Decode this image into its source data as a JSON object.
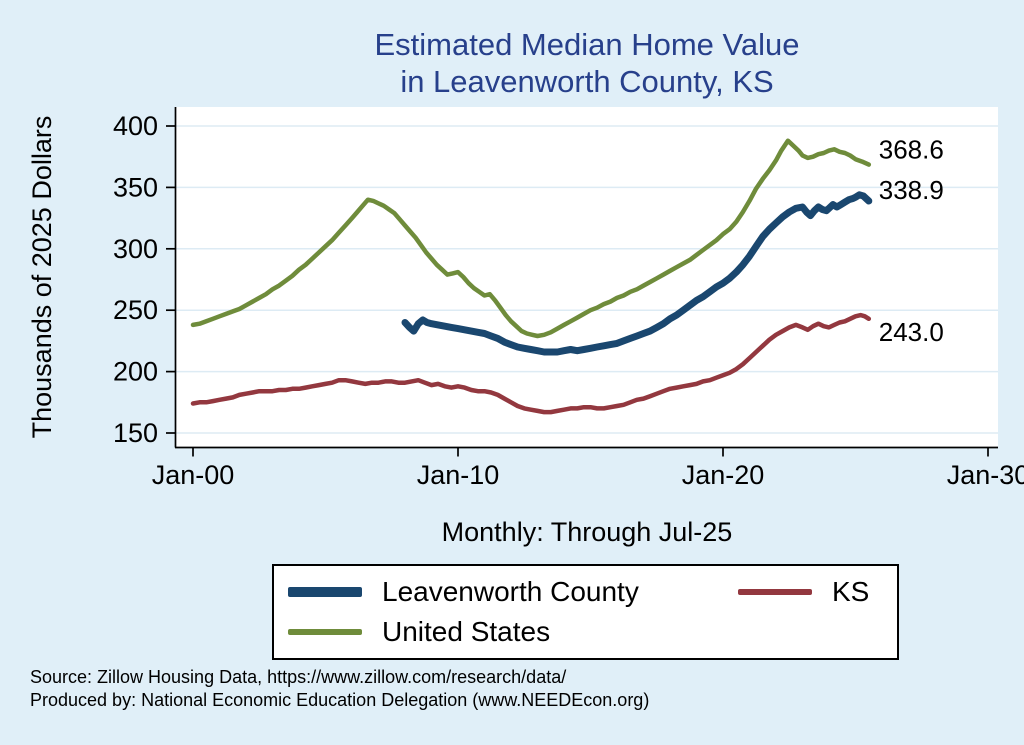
{
  "title": {
    "line1": "Estimated Median Home Value",
    "line2": "in Leavenworth County, KS"
  },
  "y_axis": {
    "label": "Thousands of 2025 Dollars"
  },
  "x_axis": {
    "subtitle": "Monthly: Through Jul-25"
  },
  "footer": {
    "line1": "Source: Zillow Housing Data, https://www.zillow.com/research/data/",
    "line2": "Produced by: National Economic Education Delegation (www.NEEDEcon.org)"
  },
  "chart_data": {
    "type": "line",
    "title": "Estimated Median Home Value in Leavenworth County, KS",
    "xlabel": "Monthly: Through Jul-25",
    "ylabel": "Thousands of 2025 Dollars",
    "x_unit": "decimal_year",
    "xlim_years": [
      2000,
      2030
    ],
    "ylim": [
      150,
      400
    ],
    "grid": true,
    "legend_position": "bottom",
    "x_ticks": [
      {
        "label": "Jan-00",
        "year": 2000
      },
      {
        "label": "Jan-10",
        "year": 2010
      },
      {
        "label": "Jan-20",
        "year": 2020
      },
      {
        "label": "Jan-30",
        "year": 2030
      }
    ],
    "y_ticks": [
      150,
      200,
      250,
      300,
      350,
      400
    ],
    "series": [
      {
        "id": "leavenworth",
        "name": "Leavenworth County",
        "color": "#1a476f",
        "width": 7,
        "end_label": "338.9",
        "points": [
          [
            2008,
            240
          ],
          [
            2008.17,
            236
          ],
          [
            2008.33,
            233
          ],
          [
            2008.5,
            239
          ],
          [
            2008.67,
            242
          ],
          [
            2008.83,
            240
          ],
          [
            2009,
            239
          ],
          [
            2009.25,
            238
          ],
          [
            2009.5,
            237
          ],
          [
            2009.75,
            236
          ],
          [
            2010,
            235
          ],
          [
            2010.25,
            234
          ],
          [
            2010.5,
            233
          ],
          [
            2010.75,
            232
          ],
          [
            2011,
            231
          ],
          [
            2011.25,
            229
          ],
          [
            2011.5,
            227
          ],
          [
            2011.75,
            224
          ],
          [
            2012,
            222
          ],
          [
            2012.25,
            220
          ],
          [
            2012.5,
            219
          ],
          [
            2012.75,
            218
          ],
          [
            2013,
            217
          ],
          [
            2013.25,
            216
          ],
          [
            2013.5,
            216
          ],
          [
            2013.75,
            216
          ],
          [
            2014,
            217
          ],
          [
            2014.25,
            218
          ],
          [
            2014.5,
            217
          ],
          [
            2014.75,
            218
          ],
          [
            2015,
            219
          ],
          [
            2015.25,
            220
          ],
          [
            2015.5,
            221
          ],
          [
            2015.75,
            222
          ],
          [
            2016,
            223
          ],
          [
            2016.25,
            225
          ],
          [
            2016.5,
            227
          ],
          [
            2016.75,
            229
          ],
          [
            2017,
            231
          ],
          [
            2017.25,
            233
          ],
          [
            2017.5,
            236
          ],
          [
            2017.75,
            239
          ],
          [
            2018,
            243
          ],
          [
            2018.25,
            246
          ],
          [
            2018.5,
            250
          ],
          [
            2018.75,
            254
          ],
          [
            2019,
            258
          ],
          [
            2019.25,
            261
          ],
          [
            2019.5,
            265
          ],
          [
            2019.75,
            269
          ],
          [
            2020,
            272
          ],
          [
            2020.25,
            276
          ],
          [
            2020.5,
            281
          ],
          [
            2020.75,
            287
          ],
          [
            2021,
            294
          ],
          [
            2021.25,
            302
          ],
          [
            2021.5,
            310
          ],
          [
            2021.75,
            316
          ],
          [
            2022,
            321
          ],
          [
            2022.25,
            326
          ],
          [
            2022.5,
            330
          ],
          [
            2022.75,
            333
          ],
          [
            2023,
            334
          ],
          [
            2023.15,
            330
          ],
          [
            2023.3,
            327
          ],
          [
            2023.45,
            331
          ],
          [
            2023.6,
            334
          ],
          [
            2023.75,
            332
          ],
          [
            2023.9,
            331
          ],
          [
            2024,
            333
          ],
          [
            2024.15,
            336
          ],
          [
            2024.3,
            334
          ],
          [
            2024.45,
            336
          ],
          [
            2024.6,
            338
          ],
          [
            2024.75,
            340
          ],
          [
            2024.9,
            341
          ],
          [
            2025,
            342
          ],
          [
            2025.15,
            344
          ],
          [
            2025.3,
            343
          ],
          [
            2025.5,
            338.9
          ]
        ]
      },
      {
        "id": "ks",
        "name": "KS",
        "color": "#93383f",
        "width": 4.5,
        "end_label": "243.0",
        "points": [
          [
            2000,
            174
          ],
          [
            2000.25,
            175
          ],
          [
            2000.5,
            175
          ],
          [
            2000.75,
            176
          ],
          [
            2001,
            177
          ],
          [
            2001.25,
            178
          ],
          [
            2001.5,
            179
          ],
          [
            2001.75,
            181
          ],
          [
            2002,
            182
          ],
          [
            2002.25,
            183
          ],
          [
            2002.5,
            184
          ],
          [
            2002.75,
            184
          ],
          [
            2003,
            184
          ],
          [
            2003.25,
            185
          ],
          [
            2003.5,
            185
          ],
          [
            2003.75,
            186
          ],
          [
            2004,
            186
          ],
          [
            2004.25,
            187
          ],
          [
            2004.5,
            188
          ],
          [
            2004.75,
            189
          ],
          [
            2005,
            190
          ],
          [
            2005.25,
            191
          ],
          [
            2005.5,
            193
          ],
          [
            2005.75,
            193
          ],
          [
            2006,
            192
          ],
          [
            2006.25,
            191
          ],
          [
            2006.5,
            190
          ],
          [
            2006.75,
            191
          ],
          [
            2007,
            191
          ],
          [
            2007.25,
            192
          ],
          [
            2007.5,
            192
          ],
          [
            2007.75,
            191
          ],
          [
            2008,
            191
          ],
          [
            2008.25,
            192
          ],
          [
            2008.5,
            193
          ],
          [
            2008.75,
            191
          ],
          [
            2009,
            189
          ],
          [
            2009.25,
            190
          ],
          [
            2009.5,
            188
          ],
          [
            2009.75,
            187
          ],
          [
            2010,
            188
          ],
          [
            2010.25,
            187
          ],
          [
            2010.5,
            185
          ],
          [
            2010.75,
            184
          ],
          [
            2011,
            184
          ],
          [
            2011.25,
            183
          ],
          [
            2011.5,
            181
          ],
          [
            2011.75,
            178
          ],
          [
            2012,
            175
          ],
          [
            2012.25,
            172
          ],
          [
            2012.5,
            170
          ],
          [
            2012.75,
            169
          ],
          [
            2013,
            168
          ],
          [
            2013.25,
            167
          ],
          [
            2013.5,
            167
          ],
          [
            2013.75,
            168
          ],
          [
            2014,
            169
          ],
          [
            2014.25,
            170
          ],
          [
            2014.5,
            170
          ],
          [
            2014.75,
            171
          ],
          [
            2015,
            171
          ],
          [
            2015.25,
            170
          ],
          [
            2015.5,
            170
          ],
          [
            2015.75,
            171
          ],
          [
            2016,
            172
          ],
          [
            2016.25,
            173
          ],
          [
            2016.5,
            175
          ],
          [
            2016.75,
            177
          ],
          [
            2017,
            178
          ],
          [
            2017.25,
            180
          ],
          [
            2017.5,
            182
          ],
          [
            2017.75,
            184
          ],
          [
            2018,
            186
          ],
          [
            2018.25,
            187
          ],
          [
            2018.5,
            188
          ],
          [
            2018.75,
            189
          ],
          [
            2019,
            190
          ],
          [
            2019.25,
            192
          ],
          [
            2019.5,
            193
          ],
          [
            2019.75,
            195
          ],
          [
            2020,
            197
          ],
          [
            2020.25,
            199
          ],
          [
            2020.5,
            202
          ],
          [
            2020.75,
            206
          ],
          [
            2021,
            211
          ],
          [
            2021.25,
            216
          ],
          [
            2021.5,
            221
          ],
          [
            2021.75,
            226
          ],
          [
            2022,
            230
          ],
          [
            2022.25,
            233
          ],
          [
            2022.5,
            236
          ],
          [
            2022.75,
            238
          ],
          [
            2023,
            236
          ],
          [
            2023.2,
            234
          ],
          [
            2023.4,
            237
          ],
          [
            2023.6,
            239
          ],
          [
            2023.8,
            237
          ],
          [
            2024,
            236
          ],
          [
            2024.2,
            238
          ],
          [
            2024.4,
            240
          ],
          [
            2024.6,
            241
          ],
          [
            2024.8,
            243
          ],
          [
            2025,
            245
          ],
          [
            2025.2,
            246
          ],
          [
            2025.35,
            245
          ],
          [
            2025.5,
            243
          ]
        ]
      },
      {
        "id": "us",
        "name": "United States",
        "color": "#6f8c3b",
        "width": 4.5,
        "end_label": "368.6",
        "points": [
          [
            2000,
            238
          ],
          [
            2000.25,
            239
          ],
          [
            2000.5,
            241
          ],
          [
            2000.75,
            243
          ],
          [
            2001,
            245
          ],
          [
            2001.25,
            247
          ],
          [
            2001.5,
            249
          ],
          [
            2001.75,
            251
          ],
          [
            2002,
            254
          ],
          [
            2002.25,
            257
          ],
          [
            2002.5,
            260
          ],
          [
            2002.75,
            263
          ],
          [
            2003,
            267
          ],
          [
            2003.25,
            270
          ],
          [
            2003.5,
            274
          ],
          [
            2003.75,
            278
          ],
          [
            2004,
            283
          ],
          [
            2004.25,
            287
          ],
          [
            2004.5,
            292
          ],
          [
            2004.75,
            297
          ],
          [
            2005,
            302
          ],
          [
            2005.25,
            307
          ],
          [
            2005.5,
            313
          ],
          [
            2005.75,
            319
          ],
          [
            2006,
            325
          ],
          [
            2006.2,
            330
          ],
          [
            2006.4,
            335
          ],
          [
            2006.6,
            340
          ],
          [
            2006.8,
            339
          ],
          [
            2007,
            337
          ],
          [
            2007.2,
            335
          ],
          [
            2007.4,
            332
          ],
          [
            2007.6,
            329
          ],
          [
            2007.8,
            324
          ],
          [
            2008,
            319
          ],
          [
            2008.2,
            314
          ],
          [
            2008.4,
            309
          ],
          [
            2008.6,
            303
          ],
          [
            2008.8,
            297
          ],
          [
            2009,
            292
          ],
          [
            2009.2,
            287
          ],
          [
            2009.4,
            283
          ],
          [
            2009.6,
            279
          ],
          [
            2009.8,
            280
          ],
          [
            2010,
            281
          ],
          [
            2010.2,
            277
          ],
          [
            2010.4,
            272
          ],
          [
            2010.6,
            268
          ],
          [
            2010.8,
            265
          ],
          [
            2011,
            262
          ],
          [
            2011.2,
            263
          ],
          [
            2011.4,
            258
          ],
          [
            2011.6,
            252
          ],
          [
            2011.8,
            246
          ],
          [
            2012,
            241
          ],
          [
            2012.2,
            237
          ],
          [
            2012.4,
            233
          ],
          [
            2012.6,
            231
          ],
          [
            2012.8,
            230
          ],
          [
            2013,
            229
          ],
          [
            2013.25,
            230
          ],
          [
            2013.5,
            232
          ],
          [
            2013.75,
            235
          ],
          [
            2014,
            238
          ],
          [
            2014.25,
            241
          ],
          [
            2014.5,
            244
          ],
          [
            2014.75,
            247
          ],
          [
            2015,
            250
          ],
          [
            2015.25,
            252
          ],
          [
            2015.5,
            255
          ],
          [
            2015.75,
            257
          ],
          [
            2016,
            260
          ],
          [
            2016.25,
            262
          ],
          [
            2016.5,
            265
          ],
          [
            2016.75,
            267
          ],
          [
            2017,
            270
          ],
          [
            2017.25,
            273
          ],
          [
            2017.5,
            276
          ],
          [
            2017.75,
            279
          ],
          [
            2018,
            282
          ],
          [
            2018.25,
            285
          ],
          [
            2018.5,
            288
          ],
          [
            2018.75,
            291
          ],
          [
            2019,
            295
          ],
          [
            2019.25,
            299
          ],
          [
            2019.5,
            303
          ],
          [
            2019.75,
            307
          ],
          [
            2020,
            312
          ],
          [
            2020.25,
            316
          ],
          [
            2020.5,
            322
          ],
          [
            2020.75,
            330
          ],
          [
            2021,
            339
          ],
          [
            2021.25,
            349
          ],
          [
            2021.5,
            357
          ],
          [
            2021.75,
            364
          ],
          [
            2022,
            372
          ],
          [
            2022.2,
            380
          ],
          [
            2022.45,
            388
          ],
          [
            2022.65,
            384
          ],
          [
            2022.85,
            380
          ],
          [
            2023,
            376
          ],
          [
            2023.2,
            374
          ],
          [
            2023.4,
            375
          ],
          [
            2023.6,
            377
          ],
          [
            2023.8,
            378
          ],
          [
            2024,
            380
          ],
          [
            2024.2,
            381
          ],
          [
            2024.4,
            379
          ],
          [
            2024.6,
            378
          ],
          [
            2024.8,
            376
          ],
          [
            2025,
            373
          ],
          [
            2025.25,
            371
          ],
          [
            2025.5,
            368.6
          ]
        ]
      }
    ]
  }
}
